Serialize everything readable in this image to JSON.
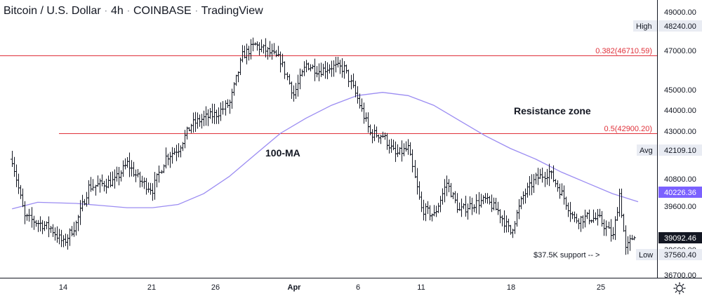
{
  "header": {
    "symbol": "Bitcoin / U.S. Dollar",
    "interval": "4h",
    "exchange": "COINBASE",
    "platform": "TradingView"
  },
  "colors": {
    "candles": "#131722",
    "fib_line": "#e0313a",
    "ma_line": "#9b8cf2",
    "ma_label_bg": "#7b61ff",
    "last_price_bg": "#131722",
    "tag_bg": "#e9ecf3"
  },
  "y_axis": {
    "ticks": [
      "49000.00",
      "47000.00",
      "45000.00",
      "44000.00",
      "43000.00",
      "40800.00",
      "39600.00",
      "38600.00",
      "36700.00"
    ],
    "high_label": "High",
    "high_value": "48240.00",
    "avg_label": "Avg",
    "avg_value": "42109.10",
    "ma_value": "40226.36",
    "last_value": "39092.46",
    "low_label": "Low",
    "low_value": "37560.40"
  },
  "x_axis": {
    "ticks": [
      "14",
      "21",
      "26",
      "Apr",
      "6",
      "11",
      "18",
      "25"
    ]
  },
  "annotations": {
    "fib_382": "0.382(46710.59)",
    "fib_5": "0.5(42900.20)",
    "resistance": "Resistance zone",
    "ma": "100-MA",
    "support": "$37.5K support -- >"
  },
  "chart_data": {
    "type": "candlestick",
    "title": "Bitcoin / U.S. Dollar · 4h · COINBASE · TradingView",
    "x_ticks": [
      "14",
      "21",
      "26",
      "Apr",
      "6",
      "11",
      "18",
      "25"
    ],
    "ylim": [
      36500,
      49700
    ],
    "price_waypoints": [
      {
        "x": "Mar 10",
        "price": 42200
      },
      {
        "x": "Mar 11",
        "price": 39500
      },
      {
        "x": "Mar 13",
        "price": 39000
      },
      {
        "x": "Mar 14",
        "price": 38300
      },
      {
        "x": "Mar 15",
        "price": 39200
      },
      {
        "x": "Mar 16",
        "price": 40900
      },
      {
        "x": "Mar 18",
        "price": 41200
      },
      {
        "x": "Mar 19",
        "price": 42000
      },
      {
        "x": "Mar 20",
        "price": 41200
      },
      {
        "x": "Mar 21",
        "price": 40800
      },
      {
        "x": "Mar 22",
        "price": 42300
      },
      {
        "x": "Mar 23",
        "price": 42700
      },
      {
        "x": "Mar 24",
        "price": 43800
      },
      {
        "x": "Mar 25",
        "price": 44100
      },
      {
        "x": "Mar 26",
        "price": 44300
      },
      {
        "x": "Mar 27",
        "price": 44800
      },
      {
        "x": "Mar 28",
        "price": 47000
      },
      {
        "x": "Mar 29",
        "price": 47500
      },
      {
        "x": "Mar 30",
        "price": 47200
      },
      {
        "x": "Mar 31",
        "price": 46800
      },
      {
        "x": "Apr 1",
        "price": 45200
      },
      {
        "x": "Apr 2",
        "price": 46600
      },
      {
        "x": "Apr 3",
        "price": 46300
      },
      {
        "x": "Apr 4",
        "price": 46500
      },
      {
        "x": "Apr 5",
        "price": 46400
      },
      {
        "x": "Apr 6",
        "price": 45000
      },
      {
        "x": "Apr 7",
        "price": 43400
      },
      {
        "x": "Apr 8",
        "price": 43300
      },
      {
        "x": "Apr 9",
        "price": 42400
      },
      {
        "x": "Apr 10",
        "price": 42700
      },
      {
        "x": "Apr 11",
        "price": 39900
      },
      {
        "x": "Apr 12",
        "price": 39600
      },
      {
        "x": "Apr 13",
        "price": 41100
      },
      {
        "x": "Apr 14",
        "price": 39800
      },
      {
        "x": "Apr 15",
        "price": 40100
      },
      {
        "x": "Apr 16",
        "price": 40300
      },
      {
        "x": "Apr 17",
        "price": 39800
      },
      {
        "x": "Apr 18",
        "price": 38800
      },
      {
        "x": "Apr 19",
        "price": 40500
      },
      {
        "x": "Apr 20",
        "price": 41300
      },
      {
        "x": "Apr 21",
        "price": 41600
      },
      {
        "x": "Apr 22",
        "price": 40600
      },
      {
        "x": "Apr 23",
        "price": 39400
      },
      {
        "x": "Apr 24",
        "price": 39500
      },
      {
        "x": "Apr 25",
        "price": 39400
      },
      {
        "x": "Apr 26",
        "price": 38600
      },
      {
        "x": "Apr 26.5",
        "price": 40600
      },
      {
        "x": "Apr 27",
        "price": 38000
      },
      {
        "x": "Apr 28",
        "price": 39100
      }
    ],
    "ma_series": [
      {
        "x": "Mar 10",
        "price": 39900
      },
      {
        "x": "Mar 12",
        "price": 40200
      },
      {
        "x": "Mar 15",
        "price": 40150
      },
      {
        "x": "Mar 17",
        "price": 40050
      },
      {
        "x": "Mar 19",
        "price": 39950
      },
      {
        "x": "Mar 21",
        "price": 39950
      },
      {
        "x": "Mar 23",
        "price": 40100
      },
      {
        "x": "Mar 25",
        "price": 40600
      },
      {
        "x": "Mar 27",
        "price": 41400
      },
      {
        "x": "Mar 29",
        "price": 42400
      },
      {
        "x": "Mar 31",
        "price": 43400
      },
      {
        "x": "Apr 2",
        "price": 44100
      },
      {
        "x": "Apr 4",
        "price": 44700
      },
      {
        "x": "Apr 6",
        "price": 45150
      },
      {
        "x": "Apr 8",
        "price": 45300
      },
      {
        "x": "Apr 10",
        "price": 45150
      },
      {
        "x": "Apr 12",
        "price": 44700
      },
      {
        "x": "Apr 14",
        "price": 44000
      },
      {
        "x": "Apr 16",
        "price": 43300
      },
      {
        "x": "Apr 18",
        "price": 42700
      },
      {
        "x": "Apr 20",
        "price": 42200
      },
      {
        "x": "Apr 22",
        "price": 41600
      },
      {
        "x": "Apr 24",
        "price": 41100
      },
      {
        "x": "Apr 26",
        "price": 40600
      },
      {
        "x": "Apr 28",
        "price": 40226
      }
    ],
    "fib_levels": [
      {
        "label": "0.382(46710.59)",
        "price": 46710.59
      },
      {
        "label": "0.5(42900.20)",
        "price": 42900.2
      }
    ],
    "high": 48240.0,
    "low": 37560.4,
    "avg": 42109.1,
    "ma_last": 40226.36,
    "last": 39092.46
  }
}
